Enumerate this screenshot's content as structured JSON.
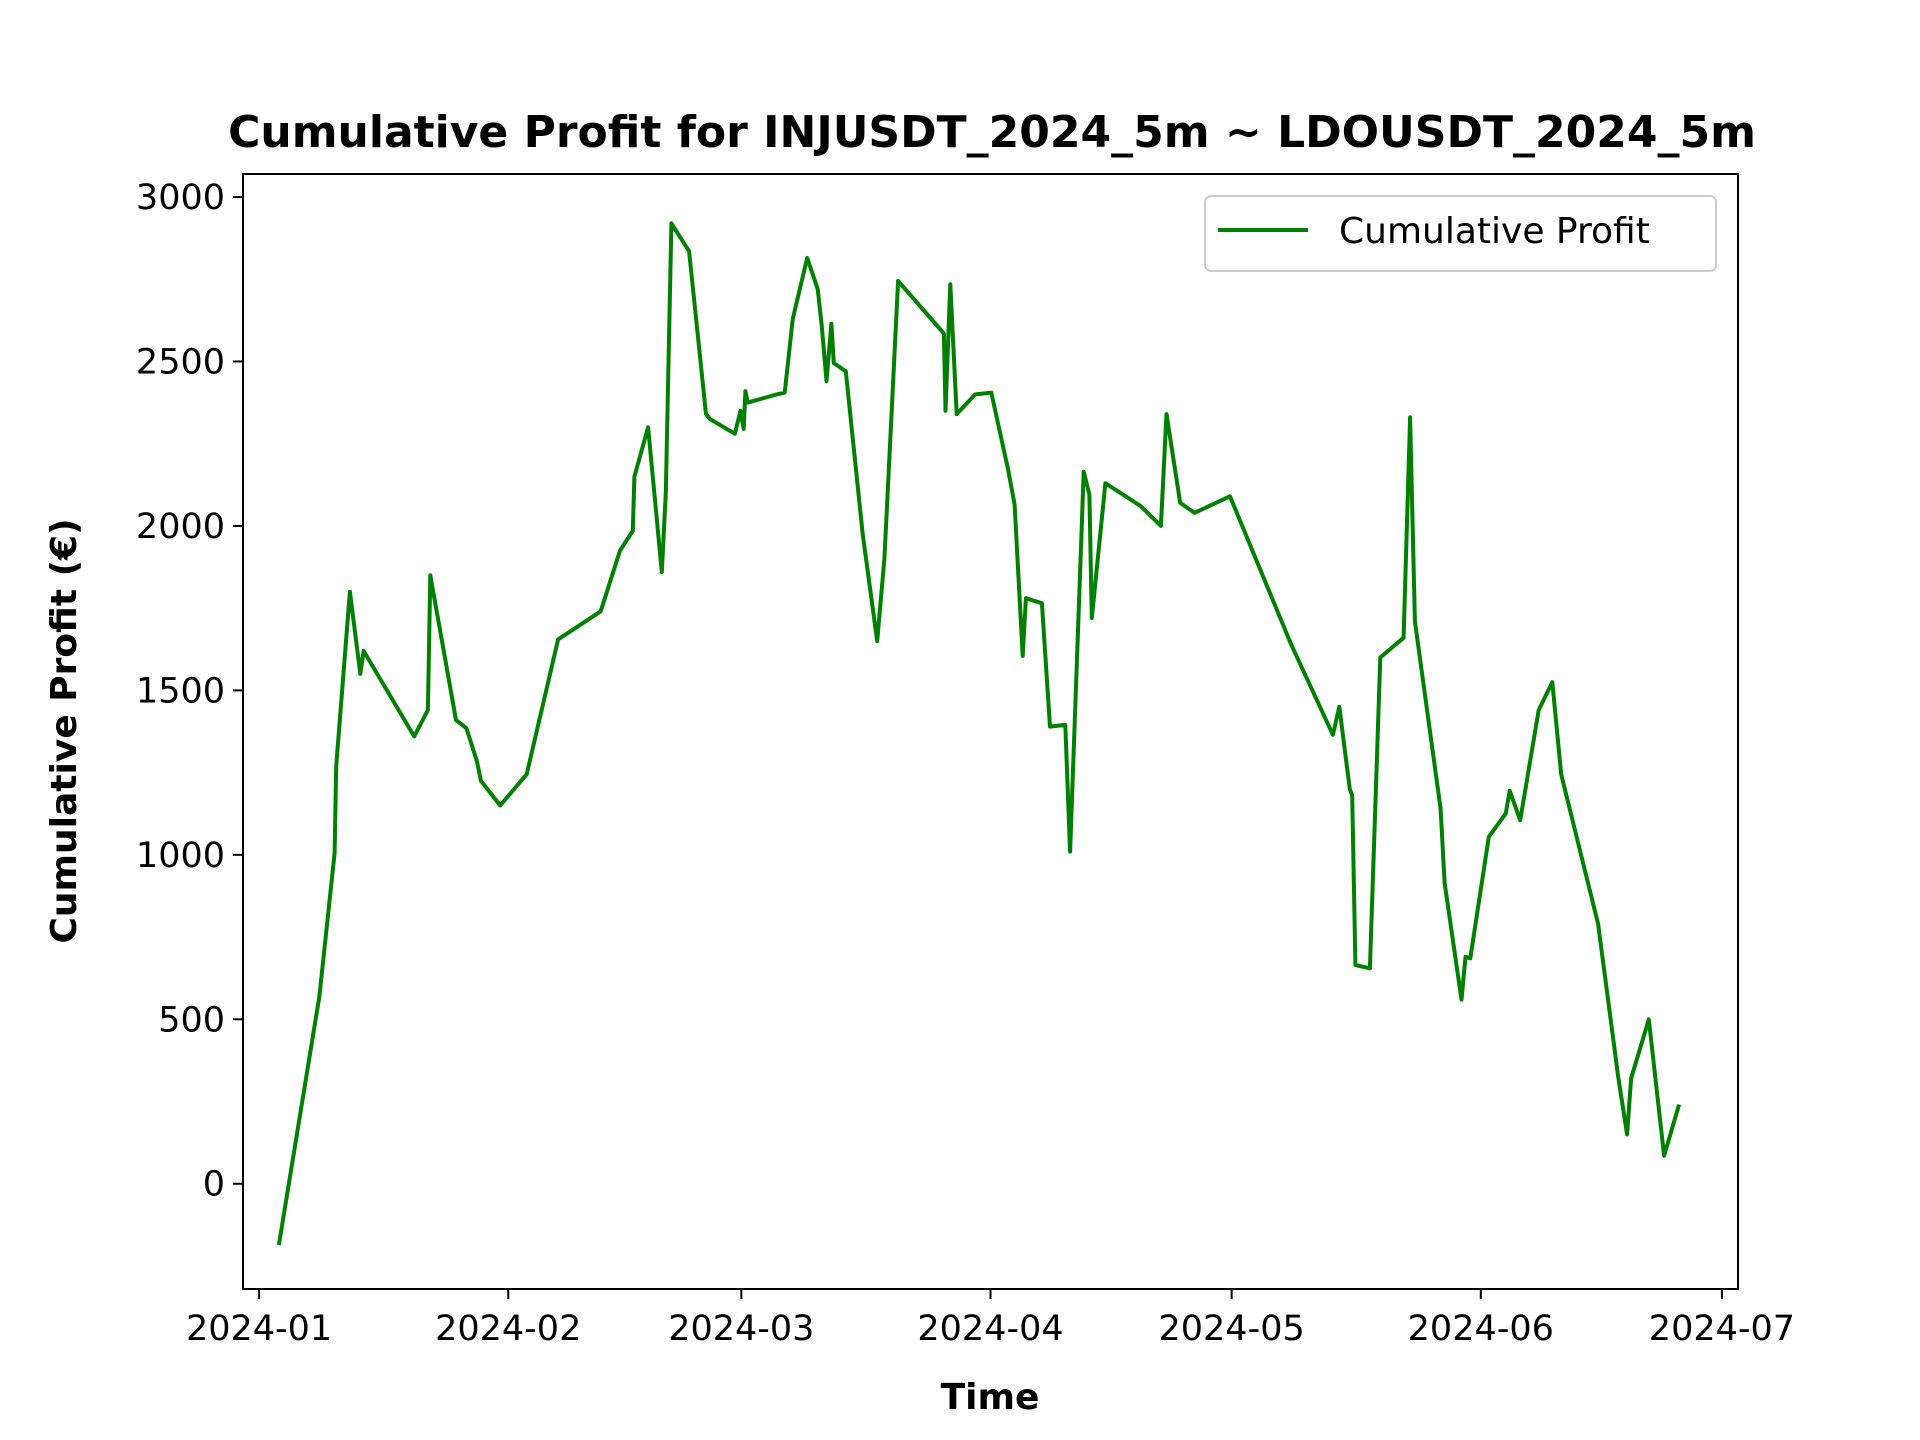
{
  "chart_data": {
    "type": "line",
    "title": "Cumulative Profit for INJUSDT_2024_5m ~ LDOUSDT_2024_5m",
    "xlabel": "Time",
    "ylabel": "Cumulative Profit (€)",
    "ylim": [
      -320,
      3070
    ],
    "yticks": [
      0,
      500,
      1000,
      1500,
      2000,
      2500,
      3000
    ],
    "xlim_days": [
      -2,
      184
    ],
    "xticks": [
      {
        "label": "2024-01",
        "day": 0
      },
      {
        "label": "2024-02",
        "day": 31
      },
      {
        "label": "2024-03",
        "day": 60
      },
      {
        "label": "2024-04",
        "day": 91
      },
      {
        "label": "2024-05",
        "day": 121
      },
      {
        "label": "2024-06",
        "day": 152
      },
      {
        "label": "2024-07",
        "day": 182
      }
    ],
    "grid": false,
    "legend": {
      "position": "upper right",
      "entries": [
        "Cumulative Profit"
      ]
    },
    "series": [
      {
        "name": "Cumulative Profit",
        "color": "#008000",
        "x_days": [
          2.5,
          7.5,
          9.4,
          9.6,
          11.3,
          12.6,
          13.0,
          19.3,
          21.0,
          21.3,
          24.5,
          25.8,
          27.1,
          27.6,
          30.0,
          33.3,
          37.2,
          42.5,
          44.9,
          46.5,
          46.7,
          48.4,
          50.1,
          50.6,
          51.3,
          53.5,
          55.6,
          56.1,
          59.2,
          59.9,
          60.3,
          60.5,
          60.8,
          64.4,
          65.4,
          66.4,
          68.2,
          69.5,
          70.0,
          70.6,
          71.2,
          71.5,
          73.0,
          75.1,
          76.9,
          77.8,
          79.5,
          85.2,
          85.4,
          86.0,
          86.8,
          89.1,
          91.1,
          93.2,
          94.0,
          95.0,
          95.4,
          97.4,
          98.4,
          100.3,
          100.9,
          102.6,
          103.3,
          103.6,
          105.3,
          109.7,
          112.2,
          112.9,
          114.6,
          116.4,
          120.8,
          128.4,
          133.6,
          134.4,
          135.7,
          136.0,
          136.4,
          138.2,
          139.5,
          142.4,
          143.2,
          143.8,
          147.0,
          147.5,
          149.6,
          150.1,
          150.7,
          153.0,
          155.1,
          155.6,
          156.9,
          159.2,
          160.9,
          162.0,
          166.6,
          169.1,
          170.2,
          170.7,
          172.9,
          174.8,
          176.6
        ],
        "values": [
          -180,
          570,
          1005,
          1270,
          1800,
          1550,
          1620,
          1360,
          1440,
          1850,
          1410,
          1385,
          1285,
          1225,
          1150,
          1245,
          1655,
          1740,
          1925,
          1985,
          2150,
          2300,
          1860,
          2100,
          2920,
          2835,
          2340,
          2325,
          2280,
          2350,
          2295,
          2410,
          2375,
          2400,
          2405,
          2630,
          2815,
          2720,
          2610,
          2440,
          2615,
          2495,
          2470,
          1975,
          1650,
          1900,
          2745,
          2585,
          2350,
          2735,
          2340,
          2400,
          2405,
          2170,
          2065,
          1605,
          1780,
          1765,
          1390,
          1395,
          1010,
          2165,
          2095,
          1720,
          2130,
          2060,
          2000,
          2340,
          2070,
          2040,
          2090,
          1640,
          1365,
          1450,
          1200,
          1180,
          665,
          655,
          1600,
          1660,
          2330,
          1710,
          1140,
          915,
          560,
          690,
          685,
          1055,
          1125,
          1195,
          1105,
          1440,
          1525,
          1245,
          790,
          325,
          150,
          320,
          500,
          85,
          235
        ]
      }
    ]
  }
}
